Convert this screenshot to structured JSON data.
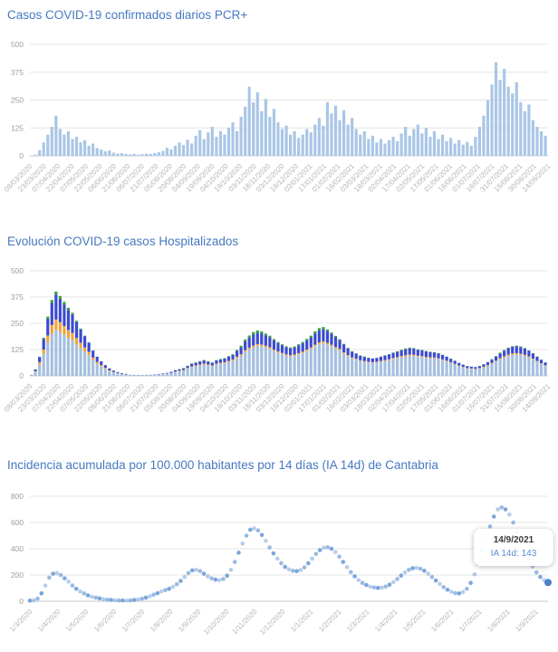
{
  "page": {
    "background": "#ffffff"
  },
  "chart_data": [
    {
      "type": "bar",
      "title": "Casos COVID-19 confirmados diarios PCR+",
      "xlabel": "",
      "ylabel": "",
      "ylim": [
        0,
        500
      ],
      "yticks": [
        0,
        125,
        250,
        375,
        500
      ],
      "grid": "horizontal",
      "legend": "none",
      "bar_color": "#a9c6e6",
      "sampling_note": "daily cases 08/03/2020-14/09/2021, sampled ~every 4.4 days",
      "xticklabels": [
        "08/03/2020",
        "23/03/2020",
        "07/04/2020",
        "22/04/2020",
        "07/05/2020",
        "22/05/2020",
        "06/06/2020",
        "21/06/2020",
        "06/07/2020",
        "21/07/2020",
        "05/08/2020",
        "20/08/2020",
        "04/09/2020",
        "19/09/2020",
        "04/10/2020",
        "19/10/2020",
        "03/11/2020",
        "18/11/2020",
        "03/12/2020",
        "18/12/2020",
        "02/01/2021",
        "17/01/2021",
        "01/02/2021",
        "16/02/2021",
        "03/03/2021",
        "18/03/2021",
        "02/04/2021",
        "17/04/2021",
        "02/05/2021",
        "17/05/2021",
        "01/06/2021",
        "16/06/2021",
        "01/07/2021",
        "16/07/2021",
        "31/07/2021",
        "15/08/2021",
        "30/08/2021",
        "14/09/2021"
      ],
      "values": [
        2,
        5,
        25,
        60,
        95,
        130,
        180,
        120,
        95,
        110,
        75,
        85,
        60,
        70,
        45,
        55,
        35,
        28,
        20,
        24,
        14,
        10,
        12,
        8,
        6,
        9,
        5,
        7,
        10,
        8,
        12,
        16,
        22,
        35,
        28,
        45,
        60,
        48,
        72,
        55,
        90,
        115,
        75,
        105,
        130,
        85,
        110,
        95,
        125,
        150,
        110,
        175,
        220,
        310,
        240,
        285,
        200,
        255,
        175,
        210,
        150,
        120,
        135,
        95,
        110,
        80,
        95,
        120,
        105,
        140,
        170,
        135,
        240,
        190,
        225,
        160,
        205,
        140,
        170,
        120,
        95,
        110,
        75,
        90,
        60,
        75,
        55,
        70,
        85,
        65,
        100,
        130,
        90,
        120,
        140,
        100,
        125,
        85,
        110,
        75,
        95,
        65,
        80,
        55,
        70,
        50,
        62,
        45,
        85,
        130,
        180,
        250,
        320,
        420,
        340,
        390,
        310,
        280,
        330,
        240,
        200,
        230,
        160,
        130,
        110,
        90
      ]
    },
    {
      "type": "stacked_bar",
      "title": "Evolución COVID-19 casos  Hospitalizados",
      "xlabel": "",
      "ylabel": "",
      "ylim": [
        0,
        500
      ],
      "yticks": [
        0,
        125,
        250,
        375,
        500
      ],
      "grid": "horizontal",
      "legend": "none",
      "sampling_note": "hospitalized 08/03/2020-14/09/2021, sampled ~every 4.4 days",
      "xticklabels": [
        "08/03/2020",
        "23/03/2020",
        "07/04/2020",
        "22/04/2020",
        "07/05/2020",
        "22/05/2020",
        "06/06/2020",
        "21/06/2020",
        "06/07/2020",
        "21/07/2020",
        "05/08/2020",
        "20/08/2020",
        "04/09/2020",
        "19/09/2020",
        "04/10/2020",
        "19/10/2020",
        "03/11/2020",
        "18/11/2020",
        "03/12/2020",
        "18/12/2020",
        "02/01/2021",
        "17/01/2021",
        "01/02/2021",
        "16/02/2021",
        "03/03/2021",
        "18/03/2021",
        "02/04/2021",
        "17/04/2021",
        "02/05/2021",
        "17/05/2021",
        "01/06/2021",
        "16/06/2021",
        "01/07/2021",
        "16/07/2021",
        "31/07/2021",
        "15/08/2021",
        "30/08/2021",
        "14/09/2021"
      ],
      "series": [
        {
          "name": "series-lightblue",
          "color": "#a4bfdf",
          "values": [
            4,
            20,
            55,
            105,
            160,
            200,
            220,
            210,
            195,
            180,
            170,
            150,
            132,
            115,
            98,
            75,
            58,
            44,
            33,
            23,
            17,
            13,
            9,
            6,
            4,
            3,
            3,
            3,
            3,
            4,
            4,
            6,
            7,
            10,
            13,
            18,
            22,
            26,
            34,
            42,
            46,
            50,
            54,
            50,
            46,
            54,
            58,
            61,
            66,
            73,
            85,
            97,
            115,
            127,
            136,
            143,
            141,
            136,
            129,
            119,
            110,
            104,
            97,
            93,
            96,
            103,
            109,
            119,
            128,
            141,
            151,
            156,
            150,
            141,
            131,
            122,
            107,
            94,
            84,
            77,
            71,
            67,
            64,
            62,
            64,
            68,
            71,
            75,
            81,
            85,
            89,
            93,
            96,
            95,
            92,
            90,
            86,
            84,
            83,
            80,
            75,
            69,
            61,
            54,
            47,
            41,
            35,
            33,
            31,
            35,
            40,
            48,
            57,
            68,
            79,
            88,
            95,
            100,
            102,
            100,
            95,
            88,
            78,
            68,
            57,
            47
          ]
        },
        {
          "name": "series-orange",
          "color": "#f0a43c",
          "values": [
            0,
            2,
            10,
            20,
            32,
            42,
            48,
            45,
            42,
            38,
            34,
            30,
            25,
            20,
            16,
            12,
            9,
            7,
            5,
            3,
            2,
            1,
            1,
            1,
            0,
            0,
            0,
            0,
            0,
            0,
            0,
            0,
            1,
            1,
            1,
            2,
            2,
            2,
            3,
            3,
            3,
            4,
            4,
            4,
            3,
            4,
            4,
            4,
            5,
            5,
            6,
            6,
            7,
            7,
            8,
            8,
            8,
            7,
            7,
            6,
            6,
            5,
            5,
            5,
            5,
            5,
            6,
            6,
            7,
            7,
            8,
            8,
            7,
            7,
            6,
            6,
            5,
            5,
            4,
            4,
            3,
            3,
            3,
            3,
            3,
            3,
            4,
            4,
            4,
            4,
            5,
            5,
            5,
            5,
            4,
            4,
            4,
            4,
            4,
            3,
            3,
            3,
            3,
            3,
            2,
            2,
            2,
            2,
            2,
            2,
            3,
            3,
            4,
            4,
            5,
            5,
            6,
            6,
            6,
            5,
            5,
            4,
            4,
            3,
            3,
            3
          ]
        },
        {
          "name": "series-blue",
          "color": "#3b4ad1",
          "values": [
            1,
            8,
            25,
            50,
            80,
            105,
            118,
            112,
            103,
            96,
            88,
            76,
            64,
            54,
            44,
            33,
            24,
            18,
            13,
            9,
            6,
            4,
            3,
            2,
            1,
            1,
            1,
            1,
            1,
            1,
            2,
            2,
            3,
            3,
            5,
            6,
            7,
            8,
            10,
            12,
            13,
            14,
            15,
            14,
            13,
            15,
            16,
            17,
            20,
            22,
            28,
            34,
            43,
            48,
            52,
            55,
            53,
            50,
            48,
            44,
            40,
            37,
            34,
            33,
            34,
            37,
            40,
            44,
            48,
            54,
            58,
            59,
            56,
            52,
            48,
            42,
            37,
            31,
            27,
            24,
            21,
            20,
            18,
            17,
            18,
            19,
            21,
            22,
            24,
            26,
            27,
            29,
            30,
            29,
            28,
            27,
            26,
            25,
            24,
            23,
            21,
            19,
            17,
            14,
            12,
            10,
            9,
            8,
            8,
            9,
            11,
            13,
            16,
            20,
            23,
            27,
            30,
            32,
            33,
            32,
            30,
            27,
            24,
            20,
            16,
            13
          ]
        },
        {
          "name": "series-green",
          "color": "#35a435",
          "values": [
            0,
            0,
            0,
            6,
            10,
            14,
            15,
            13,
            12,
            10,
            8,
            6,
            4,
            2,
            1,
            1,
            0,
            0,
            0,
            0,
            0,
            0,
            0,
            0,
            0,
            0,
            0,
            0,
            0,
            0,
            0,
            0,
            0,
            0,
            0,
            1,
            1,
            1,
            1,
            2,
            2,
            2,
            2,
            2,
            2,
            2,
            2,
            2,
            3,
            3,
            4,
            6,
            8,
            10,
            12,
            10,
            9,
            8,
            7,
            6,
            5,
            4,
            4,
            4,
            5,
            5,
            6,
            7,
            8,
            9,
            10,
            9,
            8,
            6,
            5,
            4,
            3,
            3,
            2,
            2,
            2,
            2,
            1,
            1,
            1,
            2,
            2,
            2,
            2,
            2,
            3,
            3,
            3,
            3,
            2,
            2,
            2,
            2,
            2,
            2,
            1,
            1,
            1,
            1,
            1,
            1,
            1,
            1,
            1,
            1,
            1,
            2,
            2,
            2,
            3,
            3,
            3,
            3,
            3,
            3,
            2,
            2,
            2,
            1,
            1,
            1
          ]
        }
      ]
    },
    {
      "type": "scatter",
      "title": "Incidencia acumulada por 100.000 habitantes por 14 días (IA 14d) de Cantabria",
      "xlabel": "",
      "ylabel": "",
      "ylim": [
        0,
        800
      ],
      "yticks": [
        0,
        200,
        400,
        600,
        800
      ],
      "grid": "horizontal",
      "legend": "none",
      "dot_color": "#6d9cd6",
      "dot_color_strong": "#4c82c9",
      "xlabel_fraction": 0.976,
      "sampling_note": "IA 14d 01/03/2020-14/09/2021, sampled ~every 4.2 days",
      "xticklabels": [
        "1/3/2020",
        "1/4/2020",
        "1/5/2020",
        "1/6/2020",
        "1/7/2020",
        "1/8/2020",
        "1/9/2020",
        "1/10/2020",
        "1/11/2020",
        "1/12/2020",
        "1/1/2021",
        "1/2/2021",
        "1/3/2021",
        "1/4/2021",
        "1/5/2021",
        "1/6/2021",
        "1/7/2021",
        "1/8/2021",
        "1/9/2021"
      ],
      "values": [
        5,
        8,
        20,
        60,
        120,
        180,
        210,
        215,
        200,
        175,
        150,
        120,
        95,
        75,
        60,
        45,
        35,
        28,
        22,
        16,
        12,
        10,
        8,
        7,
        6,
        6,
        7,
        10,
        14,
        20,
        28,
        38,
        50,
        62,
        75,
        85,
        95,
        110,
        130,
        155,
        185,
        215,
        235,
        240,
        230,
        210,
        190,
        175,
        165,
        160,
        170,
        195,
        240,
        300,
        370,
        440,
        500,
        545,
        555,
        540,
        505,
        460,
        410,
        365,
        325,
        290,
        262,
        243,
        232,
        230,
        238,
        258,
        290,
        325,
        360,
        390,
        408,
        412,
        400,
        375,
        340,
        300,
        260,
        222,
        190,
        162,
        140,
        124,
        112,
        105,
        102,
        104,
        112,
        126,
        146,
        170,
        196,
        220,
        240,
        252,
        255,
        248,
        232,
        210,
        185,
        158,
        132,
        108,
        88,
        72,
        62,
        60,
        70,
        95,
        140,
        205,
        290,
        385,
        480,
        570,
        645,
        700,
        715,
        700,
        660,
        600,
        530,
        455,
        385,
        320,
        265,
        220,
        185,
        160,
        143
      ],
      "tooltip": {
        "date": "14/9/2021",
        "value_label": "IA 14d: 143"
      }
    }
  ]
}
